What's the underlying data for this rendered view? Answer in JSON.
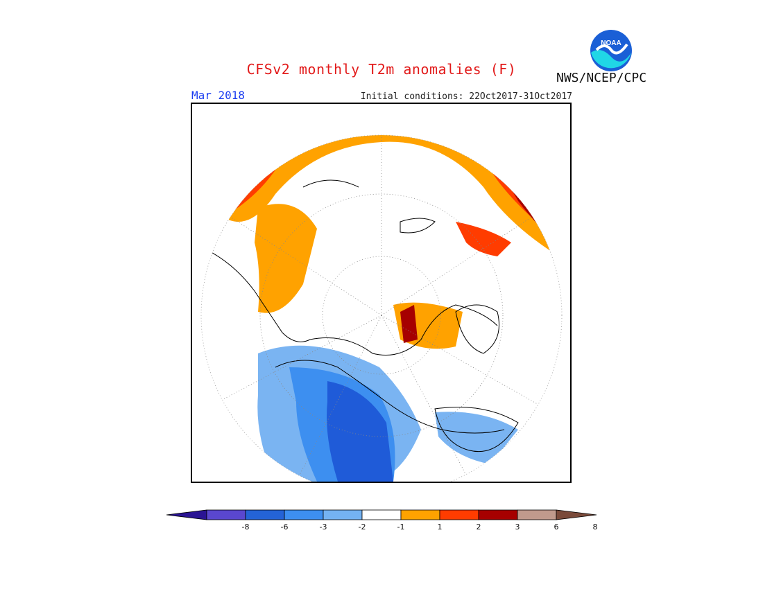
{
  "header": {
    "title": "CFSv2 monthly T2m anomalies (F)",
    "period": "Mar 2018",
    "initial_conditions": "Initial conditions: 22Oct2017-31Oct2017",
    "organization": "NWS/NCEP/CPC",
    "logo_text": "NOAA"
  },
  "colorbar": {
    "ticks": [
      "-8",
      "-6",
      "-3",
      "-2",
      "-1",
      "1",
      "2",
      "3",
      "6",
      "8"
    ],
    "colors": [
      "#2a1494",
      "#5a47cf",
      "#2463d6",
      "#3d8ff0",
      "#74b2f2",
      "#ffffff",
      "#ffa200",
      "#ff3c00",
      "#a60000",
      "#c09a8c",
      "#7a4a3a"
    ]
  },
  "legend_colors": {
    "coldest": "#2a1494",
    "cold_strong": "#1f5bd8",
    "cold": "#3d8ff0",
    "cool": "#7ab4f2",
    "neutral": "#ffffff",
    "warm": "#ffa200",
    "warmer": "#ff3c00",
    "hot": "#a60000"
  }
}
